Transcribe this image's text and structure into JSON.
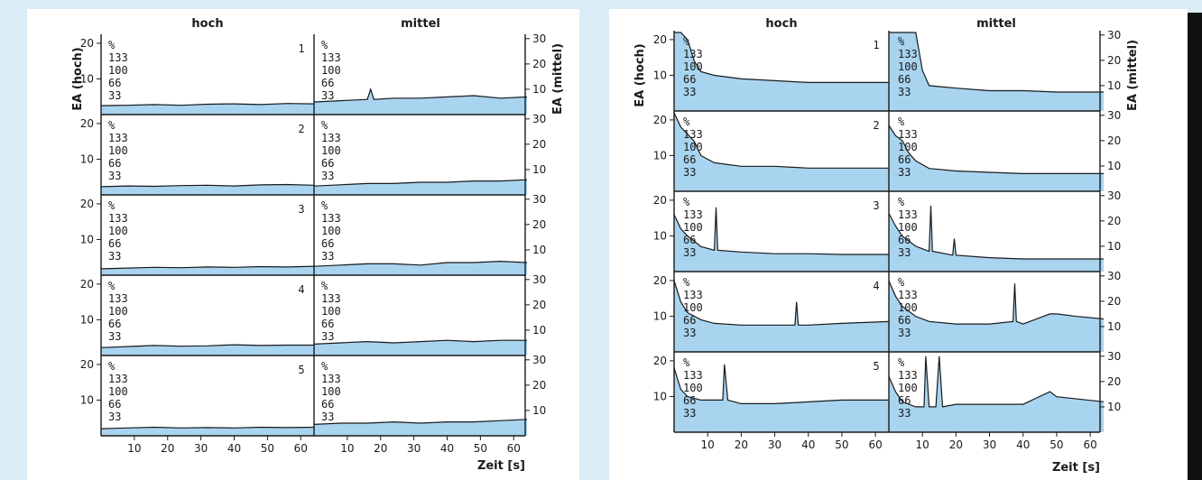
{
  "colors": {
    "page_background": "#dcecf7",
    "panel_background": "#ffffff",
    "fill": "#a8d4f0",
    "line": "#1a1a1a",
    "right_strip": "#111111"
  },
  "chart_data": [
    {
      "type": "area",
      "column_labels": [
        "hoch",
        "mittel"
      ],
      "ylabel_left": "EA (hoch)",
      "ylabel_right": "EA (mittel)",
      "xlabel": "Zeit [s]",
      "xlim": [
        0,
        64
      ],
      "x_ticks": [
        10,
        20,
        30,
        40,
        50,
        60
      ],
      "ylim_left": [
        0,
        22
      ],
      "ylim_right": [
        0,
        31
      ],
      "y_ticks_left": [
        10,
        20
      ],
      "y_ticks_right": [
        10,
        20,
        30
      ],
      "percent_scale": [
        "%",
        "133",
        "100",
        "66",
        "33"
      ],
      "rows": [
        {
          "label": "1",
          "hoch": {
            "x": [
              0,
              8,
              16,
              24,
              32,
              40,
              48,
              56,
              64
            ],
            "y": [
              2.5,
              2.6,
              2.8,
              2.6,
              2.9,
              3.0,
              2.8,
              3.1,
              3.0
            ]
          },
          "mittel": {
            "x": [
              0,
              8,
              16,
              17,
              18,
              24,
              32,
              40,
              48,
              56,
              64
            ],
            "y": [
              5,
              5.5,
              6,
              10,
              6,
              6.5,
              6.5,
              7,
              7.5,
              6.5,
              7
            ]
          }
        },
        {
          "label": "2",
          "hoch": {
            "x": [
              0,
              8,
              16,
              24,
              32,
              40,
              48,
              56,
              64
            ],
            "y": [
              2.3,
              2.5,
              2.4,
              2.6,
              2.7,
              2.5,
              2.8,
              2.9,
              2.7
            ]
          },
          "mittel": {
            "x": [
              0,
              8,
              16,
              24,
              32,
              40,
              48,
              56,
              64
            ],
            "y": [
              3.5,
              4,
              4.5,
              4.5,
              5,
              5,
              5.5,
              5.5,
              6
            ]
          }
        },
        {
          "label": "3",
          "hoch": {
            "x": [
              0,
              8,
              16,
              24,
              32,
              40,
              48,
              56,
              64
            ],
            "y": [
              1.8,
              2.0,
              2.2,
              2.1,
              2.3,
              2.2,
              2.4,
              2.3,
              2.5
            ]
          },
          "mittel": {
            "x": [
              0,
              8,
              16,
              24,
              32,
              40,
              48,
              56,
              64
            ],
            "y": [
              3.5,
              4,
              4.5,
              4.5,
              4,
              5,
              5,
              5.5,
              5
            ]
          }
        },
        {
          "label": "4",
          "hoch": {
            "x": [
              0,
              8,
              16,
              24,
              32,
              40,
              48,
              56,
              64
            ],
            "y": [
              2.2,
              2.5,
              2.8,
              2.6,
              2.7,
              3.0,
              2.8,
              2.9,
              2.9
            ]
          },
          "mittel": {
            "x": [
              0,
              8,
              16,
              24,
              32,
              40,
              48,
              56,
              64
            ],
            "y": [
              4.5,
              5,
              5.5,
              5,
              5.5,
              6,
              5.5,
              6,
              6
            ]
          }
        },
        {
          "label": "5",
          "hoch": {
            "x": [
              0,
              8,
              16,
              24,
              32,
              40,
              48,
              56,
              64
            ],
            "y": [
              2.0,
              2.2,
              2.4,
              2.2,
              2.3,
              2.2,
              2.4,
              2.3,
              2.4
            ]
          },
          "mittel": {
            "x": [
              0,
              8,
              16,
              24,
              32,
              40,
              48,
              56,
              64
            ],
            "y": [
              4.5,
              5,
              5,
              5.5,
              5,
              5.5,
              5.5,
              6,
              6.5
            ]
          }
        }
      ]
    },
    {
      "type": "area",
      "column_labels": [
        "hoch",
        "mittel"
      ],
      "ylabel_left": "EA (hoch)",
      "ylabel_right": "EA (mittel)",
      "xlabel": "Zeit [s]",
      "xlim": [
        0,
        64
      ],
      "x_ticks": [
        10,
        20,
        30,
        40,
        50,
        60
      ],
      "ylim_left": [
        0,
        22
      ],
      "ylim_right": [
        0,
        31
      ],
      "y_ticks_left": [
        10,
        20
      ],
      "y_ticks_right": [
        10,
        20,
        30
      ],
      "percent_scale": [
        "%",
        "133",
        "100",
        "66",
        "33"
      ],
      "rows": [
        {
          "label": "1",
          "hoch": {
            "x": [
              0,
              2,
              4,
              6,
              8,
              12,
              20,
              30,
              40,
              50,
              64
            ],
            "y": [
              22,
              22,
              20,
              14,
              11,
              10,
              9,
              8.5,
              8,
              8,
              8
            ]
          },
          "mittel": {
            "x": [
              0,
              2,
              4,
              6,
              8,
              10,
              12,
              20,
              30,
              40,
              50,
              64
            ],
            "y": [
              31,
              31,
              31,
              31,
              31,
              16,
              10,
              9,
              8,
              8,
              7.5,
              7.5
            ]
          }
        },
        {
          "label": "2",
          "hoch": {
            "x": [
              0,
              2,
              4,
              6,
              8,
              12,
              20,
              30,
              40,
              50,
              64
            ],
            "y": [
              22,
              18,
              16,
              14,
              10,
              8,
              7,
              7,
              6.5,
              6.5,
              6.5
            ]
          },
          "mittel": {
            "x": [
              0,
              2,
              4,
              6,
              8,
              12,
              20,
              30,
              40,
              50,
              64
            ],
            "y": [
              26,
              22,
              20,
              15,
              12,
              9,
              8,
              7.5,
              7,
              7,
              7
            ]
          }
        },
        {
          "label": "3",
          "hoch": {
            "x": [
              0,
              2,
              4,
              8,
              12,
              12.5,
              13,
              20,
              30,
              37,
              40,
              50,
              64
            ],
            "y": [
              16,
              12,
              10,
              7,
              6,
              18,
              6,
              5.5,
              5,
              5,
              5,
              4.8,
              4.8
            ]
          },
          "mittel": {
            "x": [
              0,
              2,
              4,
              8,
              12,
              12.5,
              13,
              19,
              19.5,
              20,
              30,
              40,
              50,
              64
            ],
            "y": [
              23,
              18,
              14,
              10,
              8,
              26,
              8,
              6.5,
              13,
              6.5,
              5.5,
              5,
              5,
              5
            ]
          }
        },
        {
          "label": "4",
          "hoch": {
            "x": [
              0,
              2,
              4,
              8,
              12,
              20,
              30,
              36,
              36.5,
              37,
              40,
              50,
              64
            ],
            "y": [
              20,
              14,
              11,
              9,
              8,
              7.5,
              7.5,
              7.5,
              14,
              7.5,
              7.5,
              8,
              8.5
            ]
          },
          "mittel": {
            "x": [
              0,
              2,
              4,
              8,
              12,
              20,
              30,
              37,
              37.5,
              38,
              40,
              48,
              50,
              56,
              64
            ],
            "y": [
              28,
              22,
              18,
              14,
              12,
              11,
              11,
              12,
              27,
              12,
              11,
              15,
              15,
              14,
              13
            ]
          }
        },
        {
          "label": "5",
          "hoch": {
            "x": [
              0,
              2,
              4,
              8,
              12,
              14.5,
              15,
              16,
              20,
              30,
              40,
              50,
              64
            ],
            "y": [
              18,
              12,
              10,
              9,
              9,
              9,
              19,
              9,
              8,
              8,
              8.5,
              9,
              9
            ]
          },
          "mittel": {
            "x": [
              0,
              2,
              4,
              8,
              10.5,
              11,
              12,
              14,
              15,
              16,
              20,
              30,
              40,
              48,
              50,
              64
            ],
            "y": [
              22,
              16,
              12,
              10,
              10,
              30,
              10,
              10,
              30,
              10,
              11,
              11,
              11,
              16,
              14,
              12
            ]
          }
        }
      ]
    }
  ]
}
